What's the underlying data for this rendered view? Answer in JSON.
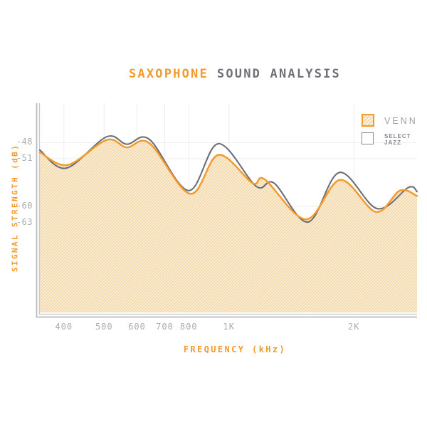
{
  "page": {
    "background": "#ffffff"
  },
  "title": {
    "accent": "SAXOPHONE",
    "rest": "SOUND ANALYSIS"
  },
  "colors": {
    "accent_orange": "#F39A2E",
    "curve_gray": "#6B7076",
    "hatch_stripe": "#F3D7A8",
    "hatch_bg": "#FCF3E2",
    "tick_text": "#A9ADB2",
    "grid": "#EDEDEE",
    "axis_line": "#B7BBC0",
    "axis_line_inner": "#C5C9CD",
    "legend_text": "#9BA0A5",
    "legend_text_small": "#84888D",
    "title_gray": "#6E7277"
  },
  "legend": {
    "items": [
      {
        "label": "VENN",
        "swatch": "orange-hatch"
      },
      {
        "label": "SELECT JAZZ",
        "swatch": "gray-outline"
      }
    ]
  },
  "chart_data": {
    "type": "area",
    "title": "SAXOPHONE SOUND ANALYSIS",
    "xlabel": "FREQUENCY (kHz)",
    "ylabel": "SIGNAL STRENGTH (dB)",
    "x_scale": "log",
    "xlim": [
      350,
      2840
    ],
    "ylim": [
      -80,
      -40.6
    ],
    "grid": true,
    "legend_position": "top-right",
    "x_ticks": [
      {
        "value": 400,
        "label": "400"
      },
      {
        "value": 500,
        "label": "500"
      },
      {
        "value": 600,
        "label": "600"
      },
      {
        "value": 700,
        "label": "700"
      },
      {
        "value": 800,
        "label": "800"
      },
      {
        "value": 1000,
        "label": "1K"
      },
      {
        "value": 2000,
        "label": "2K"
      }
    ],
    "y_ticks": [
      {
        "value": -48,
        "label": "-48"
      },
      {
        "value": -51,
        "label": "-51"
      },
      {
        "value": -60,
        "label": "-60"
      },
      {
        "value": -63,
        "label": "-63"
      }
    ],
    "series": [
      {
        "name": "VENN",
        "type": "area",
        "color": "#F39A2E",
        "points": [
          [
            350,
            -49.8
          ],
          [
            408,
            -52.2
          ],
          [
            507,
            -47.5
          ],
          [
            567,
            -48.9
          ],
          [
            643,
            -48.1
          ],
          [
            806,
            -57.6
          ],
          [
            943,
            -50.3
          ],
          [
            1140,
            -55.6
          ],
          [
            1220,
            -54.9
          ],
          [
            1534,
            -62.4
          ],
          [
            1854,
            -55.0
          ],
          [
            2259,
            -61.0
          ],
          [
            2583,
            -57.0
          ],
          [
            2840,
            -58.0
          ]
        ]
      },
      {
        "name": "SELECT JAZZ",
        "type": "line",
        "color": "#6B7076",
        "points": [
          [
            350,
            -49.4
          ],
          [
            405,
            -52.8
          ],
          [
            507,
            -46.9
          ],
          [
            567,
            -48.3
          ],
          [
            643,
            -47.4
          ],
          [
            799,
            -57.0
          ],
          [
            943,
            -48.2
          ],
          [
            1163,
            -56.2
          ],
          [
            1284,
            -55.6
          ],
          [
            1552,
            -62.9
          ],
          [
            1847,
            -53.6
          ],
          [
            2277,
            -60.4
          ],
          [
            2709,
            -56.4
          ],
          [
            2840,
            -57.2
          ]
        ]
      }
    ]
  }
}
